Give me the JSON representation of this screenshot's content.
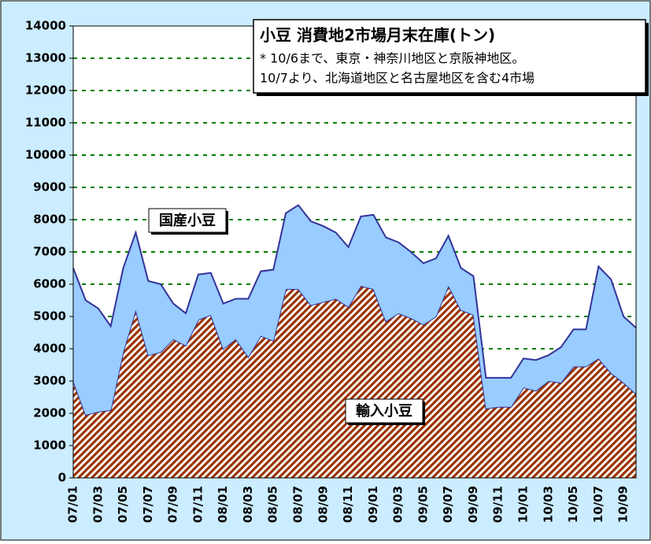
{
  "chart_data": {
    "type": "stacked_area",
    "title": "小豆 消費地2市場月末在庫(トン)",
    "annotations": [
      "* 10/6まで、東京・神奈川地区と京阪神地区。",
      "10/7より、北海道地区と名古屋地区を含む4市場"
    ],
    "categories": [
      "07/01",
      null,
      "07/03",
      null,
      "07/05",
      null,
      "07/07",
      null,
      "07/09",
      null,
      "07/11",
      null,
      "08/01",
      null,
      "08/03",
      null,
      "08/05",
      null,
      "08/07",
      null,
      "08/09",
      null,
      "08/11",
      null,
      "09/01",
      null,
      "09/03",
      null,
      "09/05",
      null,
      "09/07",
      null,
      "09/09",
      null,
      "09/11",
      null,
      "10/01",
      null,
      "10/03",
      null,
      "10/05",
      null,
      "10/07",
      null,
      "10/09",
      null
    ],
    "series": [
      {
        "name": "輸入小豆",
        "color": "#993300",
        "values": [
          3000,
          1950,
          2050,
          2100,
          3900,
          5200,
          3800,
          3900,
          4300,
          4100,
          4900,
          5050,
          4000,
          4300,
          3750,
          4400,
          4250,
          5850,
          5850,
          5350,
          5450,
          5550,
          5300,
          5950,
          5850,
          4850,
          5100,
          4950,
          4750,
          5000,
          5950,
          5200,
          5050,
          2150,
          2200,
          2200,
          2800,
          2700,
          3000,
          2950,
          3450,
          3450,
          3700,
          3250,
          2950,
          2600
        ]
      },
      {
        "name": "国産小豆",
        "color": "#99ccff",
        "values": [
          3500,
          3550,
          3200,
          2600,
          2600,
          2400,
          2300,
          2100,
          1100,
          1000,
          1400,
          1300,
          1400,
          1250,
          1800,
          2000,
          2200,
          2350,
          2600,
          2600,
          2350,
          2050,
          1850,
          2150,
          2300,
          2600,
          2200,
          2050,
          1900,
          1800,
          1550,
          1300,
          1200,
          950,
          900,
          900,
          900,
          950,
          800,
          1100,
          1150,
          1150,
          2850,
          2900,
          2050,
          2050
        ]
      }
    ],
    "ylim": [
      0,
      14000
    ],
    "yticks": [
      0,
      1000,
      2000,
      3000,
      4000,
      5000,
      6000,
      7000,
      8000,
      9000,
      10000,
      11000,
      12000,
      13000,
      14000
    ],
    "grid": true,
    "grid_color": "#008000",
    "line_color": "#333399"
  }
}
